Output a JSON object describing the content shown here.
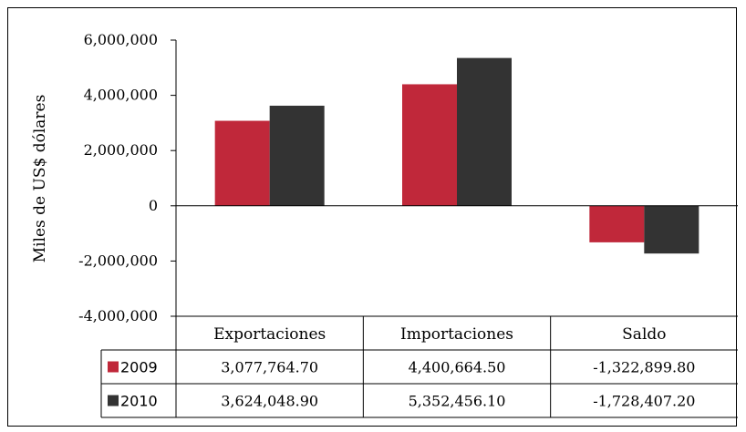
{
  "chart_data": {
    "type": "bar",
    "ylabel": "Miles de US$ dólares",
    "ylim": [
      -4000000,
      6000000
    ],
    "yticks": [
      6000000,
      4000000,
      2000000,
      0,
      -2000000,
      -4000000
    ],
    "ytick_labels": [
      "6,000,000",
      "4,000,000",
      "2,000,000",
      "0",
      "-2,000,000",
      "-4,000,000"
    ],
    "categories": [
      "Exportaciones",
      "Importaciones",
      "Saldo"
    ],
    "series": [
      {
        "name": "2009",
        "color": "#c0283a",
        "values": [
          3077764.7,
          4400664.5,
          -1322899.8
        ],
        "labels": [
          "3,077,764.70",
          "4,400,664.50",
          "-1,322,899.80"
        ]
      },
      {
        "name": "2010",
        "color": "#333333",
        "values": [
          3624048.9,
          5352456.1,
          -1728407.2
        ],
        "labels": [
          "3,624,048.90",
          "5,352,456.10",
          "-1,728,407.20"
        ]
      }
    ],
    "grid": false,
    "legend": "data-table-left"
  }
}
